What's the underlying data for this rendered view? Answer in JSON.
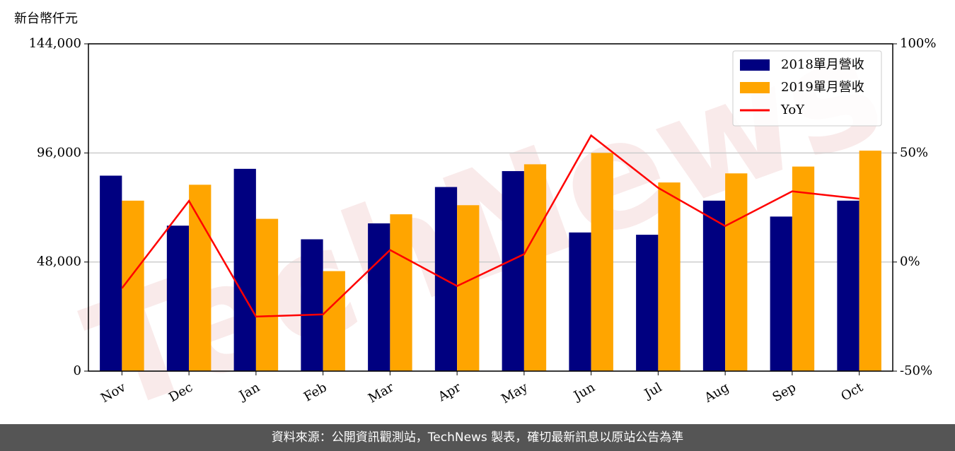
{
  "chart_data": {
    "type": "bar",
    "y_label": "新台幣仟元",
    "watermark": "TechNews",
    "categories": [
      "Nov",
      "Dec",
      "Jan",
      "Feb",
      "Mar",
      "Apr",
      "May",
      "Jun",
      "Jul",
      "Aug",
      "Sep",
      "Oct"
    ],
    "series": [
      {
        "name": "2018單月營收",
        "color": "#000080",
        "values": [
          86000,
          64000,
          89000,
          58000,
          65000,
          81000,
          88000,
          61000,
          60000,
          75000,
          68000,
          75000
        ]
      },
      {
        "name": "2019單月營收",
        "color": "#ffa500",
        "values": [
          75000,
          82000,
          67000,
          44000,
          69000,
          73000,
          91000,
          96000,
          83000,
          87000,
          90000,
          97000
        ]
      },
      {
        "name": "YoY",
        "color": "#ff0000",
        "type": "line",
        "axis": "y2",
        "values": [
          -12,
          28,
          -25,
          -24,
          5.5,
          -11,
          3.6,
          58,
          34,
          16.5,
          32.4,
          29
        ]
      }
    ],
    "ylim": [
      0,
      144000
    ],
    "yticks": [
      0,
      {
        "value": 48000,
        "label": "48,000"
      },
      {
        "value": 96000,
        "label": "96,000"
      },
      {
        "value": 144000,
        "label": "144,000"
      }
    ],
    "y2lim": [
      -50,
      100
    ],
    "y2ticks": [
      {
        "value": -50,
        "label": "-50%"
      },
      {
        "value": 0,
        "label": "0%"
      },
      {
        "value": 50,
        "label": "50%"
      },
      {
        "value": 100,
        "label": "100%"
      }
    ],
    "grid": true,
    "legend": "upper right",
    "footer": "資料來源：公開資訊觀測站，TechNews 製表，確切最新訊息以原站公告為準"
  }
}
